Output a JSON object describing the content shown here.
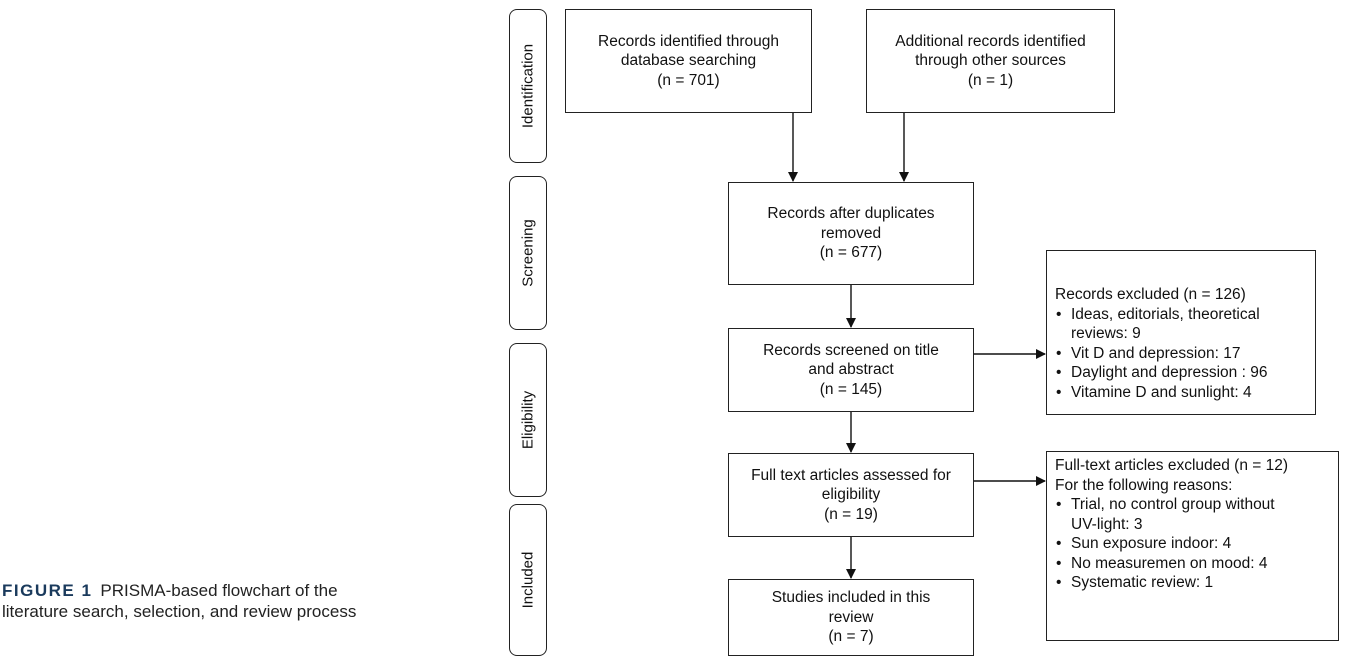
{
  "caption": {
    "figure_label": "FIGURE 1",
    "text": "PRISMA-based flowchart of the literature search, selection, and review process"
  },
  "phases": {
    "identification": "Identification",
    "screening": "Screening",
    "eligibility": "Eligibility",
    "included": "Included"
  },
  "boxes": {
    "database": {
      "line1": "Records identified through",
      "line2": "database searching",
      "line3": "(n = 701)"
    },
    "other": {
      "line1": "Additional records identified",
      "line2": "through other sources",
      "line3": "(n = 1)"
    },
    "dedup": {
      "line1": "Records after duplicates",
      "line2": "removed",
      "line3": "(n = 677)"
    },
    "screened": {
      "line1": "Records screened on title",
      "line2": "and abstract",
      "line3": "(n = 145)"
    },
    "fulltext": {
      "line1": "Full text articles assessed for",
      "line2": "eligibility",
      "line3": "(n = 19)"
    },
    "included": {
      "line1": "Studies included in this",
      "line2": "review",
      "line3": "(n = 7)"
    }
  },
  "excluded_records": {
    "heading": "Records excluded  (n = 126)",
    "items": [
      "Ideas, editorials, theoretical",
      "Vit  D and depression: 17",
      "Daylight and depression : 96",
      "Vitamine D and sunlight: 4"
    ],
    "item1_cont": "reviews: 9"
  },
  "excluded_fulltext": {
    "heading": "Full-text articles excluded  (n = 12)",
    "subheading": "For the following reasons:",
    "items": [
      "Trial,  no control group without",
      "Sun exposure indoor: 4",
      "No measuremen on mood: 4",
      "Systematic review: 1"
    ],
    "item1_cont": "UV-light: 3"
  }
}
